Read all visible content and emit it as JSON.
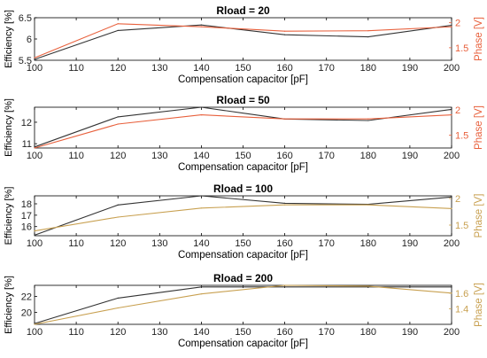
{
  "chart_data": [
    {
      "type": "line",
      "title": "Rload = 20",
      "xlabel": "Compensation capacitor [pF]",
      "ylabel_left": "Efficiency [%]",
      "ylabel_right": "Phase [V]",
      "x": [
        100,
        120,
        140,
        160,
        180,
        200
      ],
      "xlim": [
        100,
        200
      ],
      "xticks": [
        "100",
        "110",
        "120",
        "130",
        "140",
        "150",
        "160",
        "170",
        "180",
        "190",
        "200"
      ],
      "ylim_left": [
        5.5,
        6.5
      ],
      "yticks_left": [
        "5.5",
        "6",
        "6.5"
      ],
      "ylim_right": [
        1.25,
        2.1
      ],
      "yticks_right": [
        "1.5",
        "2"
      ],
      "series": [
        {
          "axis": "left",
          "color": "#333333",
          "values": [
            5.52,
            6.2,
            6.33,
            6.1,
            6.05,
            6.32
          ]
        },
        {
          "axis": "right",
          "color": "#e8603c",
          "values": [
            1.3,
            1.98,
            1.92,
            1.83,
            1.84,
            1.92
          ]
        }
      ]
    },
    {
      "type": "line",
      "title": "Rload = 50",
      "xlabel": "Compensation capacitor [pF]",
      "ylabel_left": "Efficiency [%]",
      "ylabel_right": "Phase [V]",
      "x": [
        100,
        120,
        140,
        160,
        180,
        200
      ],
      "xlim": [
        100,
        200
      ],
      "xticks": [
        "100",
        "110",
        "120",
        "130",
        "140",
        "150",
        "160",
        "170",
        "180",
        "190",
        "200"
      ],
      "ylim_left": [
        10.8,
        12.7
      ],
      "yticks_left": [
        "11",
        "12"
      ],
      "ylim_right": [
        1.25,
        2.05
      ],
      "yticks_right": [
        "1.5",
        "2"
      ],
      "series": [
        {
          "axis": "left",
          "color": "#333333",
          "values": [
            10.85,
            12.25,
            12.7,
            12.15,
            12.08,
            12.6
          ]
        },
        {
          "axis": "right",
          "color": "#e8603c",
          "values": [
            1.25,
            1.72,
            1.9,
            1.82,
            1.82,
            1.9
          ]
        }
      ]
    },
    {
      "type": "line",
      "title": "Rload = 100",
      "xlabel": "Compensation capacitor [pF]",
      "ylabel_left": "Efficiency [%]",
      "ylabel_right": "Phase [V]",
      "x": [
        100,
        120,
        140,
        160,
        180,
        200
      ],
      "xlim": [
        100,
        200
      ],
      "xticks": [
        "100",
        "110",
        "120",
        "130",
        "140",
        "150",
        "160",
        "170",
        "180",
        "190",
        "200"
      ],
      "ylim_left": [
        15.2,
        18.7
      ],
      "yticks_left": [
        "16",
        "17",
        "18"
      ],
      "ylim_right": [
        1.3,
        2.05
      ],
      "yticks_right": [
        "1.5",
        "2"
      ],
      "series": [
        {
          "axis": "left",
          "color": "#333333",
          "values": [
            15.25,
            17.9,
            18.7,
            18.05,
            17.95,
            18.6
          ]
        },
        {
          "axis": "right",
          "color": "#c8a050",
          "values": [
            1.39,
            1.65,
            1.82,
            1.88,
            1.88,
            1.81
          ]
        }
      ]
    },
    {
      "type": "line",
      "title": "Rload = 200",
      "xlabel": "Compensation capacitor [pF]",
      "ylabel_left": "Efficiency [%]",
      "ylabel_right": "Phase [V]",
      "x": [
        100,
        120,
        140,
        160,
        180,
        200
      ],
      "xlim": [
        100,
        200
      ],
      "xticks": [
        "100",
        "110",
        "120",
        "130",
        "140",
        "150",
        "160",
        "170",
        "180",
        "190",
        "200"
      ],
      "ylim_left": [
        18.5,
        23.4
      ],
      "yticks_left": [
        "20",
        "22"
      ],
      "ylim_right": [
        1.2,
        1.7
      ],
      "yticks_right": [
        "1.4",
        "1.6"
      ],
      "series": [
        {
          "axis": "left",
          "color": "#333333",
          "values": [
            18.6,
            21.8,
            23.2,
            23.2,
            23.2,
            23.2
          ]
        },
        {
          "axis": "right",
          "color": "#c8a050",
          "values": [
            1.2,
            1.41,
            1.59,
            1.7,
            1.69,
            1.6
          ]
        }
      ]
    }
  ]
}
